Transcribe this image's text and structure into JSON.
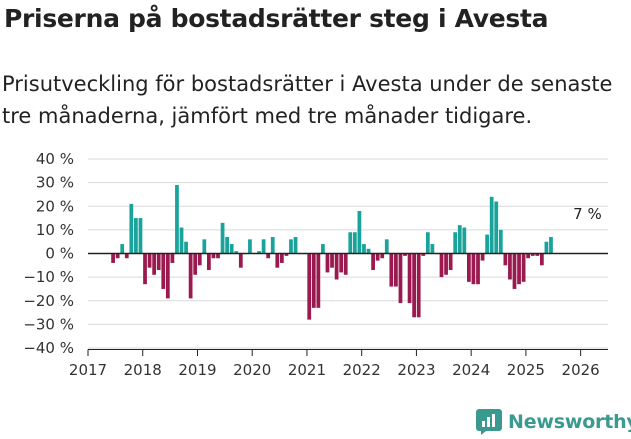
{
  "title": "Priserna på bostadsrätter steg i Avesta",
  "subtitle": "Prisutveckling för bostadsrätter i Avesta under de senaste tre månaderna, jämfört med tre månader tidigare.",
  "brand": {
    "name": "Newsworthy",
    "icon": "newsworthy-logo-icon"
  },
  "colors": {
    "positive": "#1aa39b",
    "negative": "#9a1a4f",
    "zero_line": "#222222",
    "grid": "#d9d9d9"
  },
  "chart_data": {
    "type": "bar",
    "title": "Priserna på bostadsrätter steg i Avesta",
    "xlabel": "",
    "ylabel": "",
    "ylim": [
      -40,
      40
    ],
    "y_ticks": [
      -40,
      -30,
      -20,
      -10,
      0,
      10,
      20,
      30,
      40
    ],
    "y_tick_labels": [
      "−40 %",
      "−30 %",
      "−20 %",
      "−10 %",
      "0 %",
      "10 %",
      "20 %",
      "30 %",
      "40 %"
    ],
    "x_ticks": [
      2017,
      2018,
      2019,
      2020,
      2021,
      2022,
      2023,
      2024,
      2025,
      2026
    ],
    "x_tick_labels": [
      "2017",
      "2018",
      "2019",
      "2020",
      "2021",
      "2022",
      "2023",
      "2024",
      "2025",
      "2026"
    ],
    "start": "2017-06",
    "frequency": "monthly",
    "values": [
      -4,
      -2,
      4,
      -2,
      21,
      15,
      15,
      -13,
      -6,
      -9,
      -7,
      -15,
      -19,
      -4,
      29,
      11,
      5,
      -19,
      -9,
      -5,
      6,
      -7,
      -2,
      -2,
      13,
      7,
      4,
      1,
      -6,
      0,
      6,
      0,
      1,
      6,
      -2,
      7,
      -6,
      -4,
      -1,
      6,
      7,
      0,
      0,
      -28,
      -23,
      -23,
      4,
      -8,
      -6,
      -11,
      -8,
      -9,
      9,
      9,
      18,
      4,
      2,
      -7,
      -3,
      -2,
      6,
      -14,
      -14,
      -21,
      -1,
      -21,
      -27,
      -27,
      -1,
      9,
      4,
      0,
      -10,
      -9,
      -7,
      9,
      12,
      11,
      -12,
      -13,
      -13,
      -3,
      8,
      24,
      22,
      10,
      -5,
      -11,
      -15,
      -13,
      -12,
      -2,
      -1,
      -1,
      -5,
      5,
      7
    ],
    "annotations": [
      {
        "label": "7 %",
        "x": "2026-02",
        "y": 7
      }
    ],
    "legend": "none",
    "grid": "horizontal"
  }
}
